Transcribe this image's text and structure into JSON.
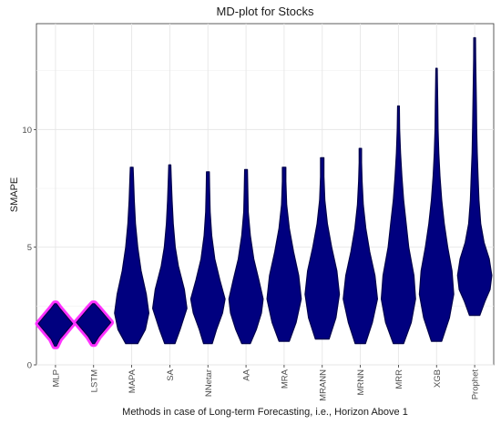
{
  "chart_data": {
    "type": "violin",
    "title": "MD-plot for Stocks",
    "xlabel": "Methods in case of Long-term Forecasting, i.e., Horizon Above 1",
    "ylabel": "SMAPE",
    "ylim": [
      0,
      14.5
    ],
    "yticks": [
      0,
      5,
      10
    ],
    "grid": true,
    "colors": {
      "fill": "#00007f",
      "stroke": "#00004a",
      "highlight": "#ff33ff"
    },
    "categories": [
      "MLP",
      "LSTM",
      "MAPA",
      "SA",
      "NNetar",
      "AA",
      "MRA",
      "MRANN",
      "MRNN",
      "MRR",
      "XGB",
      "Prophet"
    ],
    "series": [
      {
        "category": "MLP",
        "min": 0.8,
        "max": 2.6,
        "highlighted": true,
        "profile": [
          [
            0.8,
            0.05
          ],
          [
            1.1,
            0.25
          ],
          [
            1.4,
            0.6
          ],
          [
            1.75,
            1.0
          ],
          [
            2.1,
            0.6
          ],
          [
            2.4,
            0.25
          ],
          [
            2.6,
            0.05
          ]
        ]
      },
      {
        "category": "LSTM",
        "min": 0.9,
        "max": 2.6,
        "highlighted": true,
        "profile": [
          [
            0.9,
            0.05
          ],
          [
            1.2,
            0.3
          ],
          [
            1.5,
            0.65
          ],
          [
            1.8,
            1.0
          ],
          [
            2.1,
            0.65
          ],
          [
            2.4,
            0.3
          ],
          [
            2.6,
            0.05
          ]
        ]
      },
      {
        "category": "MAPA",
        "min": 0.9,
        "max": 8.4,
        "highlighted": false,
        "profile": [
          [
            0.9,
            0.35
          ],
          [
            1.5,
            0.8
          ],
          [
            2.2,
            1.0
          ],
          [
            3.0,
            0.85
          ],
          [
            4.0,
            0.55
          ],
          [
            5.0,
            0.35
          ],
          [
            6.0,
            0.22
          ],
          [
            7.0,
            0.15
          ],
          [
            8.0,
            0.1
          ],
          [
            8.4,
            0.08
          ]
        ]
      },
      {
        "category": "SA",
        "min": 0.9,
        "max": 8.5,
        "highlighted": false,
        "profile": [
          [
            0.9,
            0.3
          ],
          [
            1.5,
            0.6
          ],
          [
            2.4,
            1.0
          ],
          [
            3.2,
            0.85
          ],
          [
            4.2,
            0.5
          ],
          [
            5.0,
            0.32
          ],
          [
            6.0,
            0.2
          ],
          [
            7.0,
            0.13
          ],
          [
            8.0,
            0.08
          ],
          [
            8.5,
            0.06
          ]
        ]
      },
      {
        "category": "NNetar",
        "min": 0.9,
        "max": 8.2,
        "highlighted": false,
        "profile": [
          [
            0.9,
            0.25
          ],
          [
            1.5,
            0.5
          ],
          [
            2.2,
            0.85
          ],
          [
            2.8,
            1.0
          ],
          [
            3.6,
            0.7
          ],
          [
            4.5,
            0.4
          ],
          [
            5.5,
            0.22
          ],
          [
            6.5,
            0.13
          ],
          [
            7.5,
            0.1
          ],
          [
            8.2,
            0.08
          ]
        ]
      },
      {
        "category": "AA",
        "min": 0.9,
        "max": 8.3,
        "highlighted": false,
        "profile": [
          [
            0.9,
            0.25
          ],
          [
            1.5,
            0.6
          ],
          [
            2.2,
            0.9
          ],
          [
            2.8,
            1.0
          ],
          [
            3.6,
            0.75
          ],
          [
            4.5,
            0.45
          ],
          [
            5.5,
            0.25
          ],
          [
            6.5,
            0.13
          ],
          [
            7.5,
            0.1
          ],
          [
            8.3,
            0.08
          ]
        ]
      },
      {
        "category": "MRA",
        "min": 1.0,
        "max": 8.4,
        "highlighted": false,
        "profile": [
          [
            1.0,
            0.3
          ],
          [
            1.8,
            0.7
          ],
          [
            2.8,
            1.0
          ],
          [
            3.8,
            0.85
          ],
          [
            4.8,
            0.55
          ],
          [
            5.8,
            0.3
          ],
          [
            6.8,
            0.15
          ],
          [
            7.8,
            0.1
          ],
          [
            8.4,
            0.1
          ]
        ]
      },
      {
        "category": "MRANN",
        "min": 1.1,
        "max": 8.8,
        "highlighted": false,
        "profile": [
          [
            1.1,
            0.4
          ],
          [
            2.0,
            0.8
          ],
          [
            3.0,
            1.0
          ],
          [
            4.0,
            0.85
          ],
          [
            5.0,
            0.55
          ],
          [
            6.0,
            0.3
          ],
          [
            7.0,
            0.15
          ],
          [
            8.0,
            0.1
          ],
          [
            8.8,
            0.1
          ]
        ]
      },
      {
        "category": "MRNN",
        "min": 0.9,
        "max": 9.2,
        "highlighted": false,
        "profile": [
          [
            0.9,
            0.3
          ],
          [
            1.8,
            0.7
          ],
          [
            2.8,
            1.0
          ],
          [
            3.8,
            0.85
          ],
          [
            4.8,
            0.55
          ],
          [
            5.8,
            0.32
          ],
          [
            6.8,
            0.17
          ],
          [
            7.8,
            0.1
          ],
          [
            8.6,
            0.07
          ],
          [
            9.2,
            0.07
          ]
        ]
      },
      {
        "category": "MRR",
        "min": 0.9,
        "max": 11.0,
        "highlighted": false,
        "profile": [
          [
            0.9,
            0.3
          ],
          [
            1.8,
            0.75
          ],
          [
            2.8,
            1.0
          ],
          [
            3.8,
            0.9
          ],
          [
            5.0,
            0.6
          ],
          [
            6.0,
            0.45
          ],
          [
            7.0,
            0.3
          ],
          [
            8.0,
            0.2
          ],
          [
            9.0,
            0.12
          ],
          [
            10.0,
            0.07
          ],
          [
            11.0,
            0.05
          ]
        ]
      },
      {
        "category": "XGB",
        "min": 1.0,
        "max": 12.6,
        "highlighted": false,
        "profile": [
          [
            1.0,
            0.3
          ],
          [
            2.0,
            0.75
          ],
          [
            3.0,
            1.0
          ],
          [
            4.0,
            0.9
          ],
          [
            5.0,
            0.65
          ],
          [
            6.0,
            0.45
          ],
          [
            7.0,
            0.3
          ],
          [
            8.0,
            0.2
          ],
          [
            9.0,
            0.13
          ],
          [
            10.0,
            0.09
          ],
          [
            11.0,
            0.07
          ],
          [
            12.0,
            0.05
          ],
          [
            12.6,
            0.04
          ]
        ]
      },
      {
        "category": "Prophet",
        "min": 2.1,
        "max": 13.9,
        "highlighted": false,
        "profile": [
          [
            2.1,
            0.3
          ],
          [
            2.7,
            0.6
          ],
          [
            3.2,
            0.9
          ],
          [
            3.8,
            1.0
          ],
          [
            4.5,
            0.85
          ],
          [
            5.2,
            0.55
          ],
          [
            6.0,
            0.35
          ],
          [
            7.0,
            0.25
          ],
          [
            8.0,
            0.2
          ],
          [
            9.0,
            0.15
          ],
          [
            10.0,
            0.12
          ],
          [
            11.0,
            0.1
          ],
          [
            12.0,
            0.08
          ],
          [
            13.0,
            0.06
          ],
          [
            13.9,
            0.05
          ]
        ]
      }
    ]
  }
}
